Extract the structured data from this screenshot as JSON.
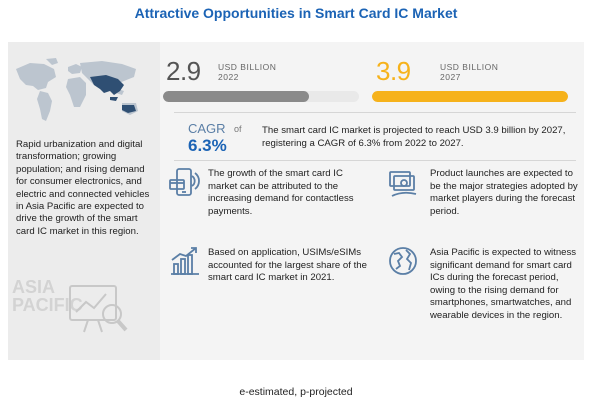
{
  "title": "Attractive Opportunities in Smart Card IC Market",
  "region": {
    "label_line1": "ASIA",
    "label_line2": "PACIFIC",
    "text": "Rapid urbanization and digital transformation; growing population; and rising demand for consumer electronics, and electric and connected vehicles in Asia Pacific are expected to drive the growth of the smart card IC market in this region."
  },
  "chart_data": {
    "type": "bar",
    "categories": [
      "2022",
      "2027"
    ],
    "values": [
      2.9,
      3.9
    ],
    "unit": "USD BILLION",
    "value_labels": [
      "2.9",
      "3.9"
    ],
    "unit_labels": [
      "USD BILLION 2022",
      "USD BILLION 2027"
    ],
    "colors": [
      "#8a8a8a",
      "#f6b21b"
    ],
    "ylim": [
      0,
      3.9
    ]
  },
  "stats": {
    "y2022": {
      "value": "2.9",
      "unit": "USD BILLION",
      "year": "2022"
    },
    "y2027": {
      "value": "3.9",
      "unit": "USD BILLION",
      "year": "2027"
    }
  },
  "cagr": {
    "label": "CAGR",
    "of": "of",
    "value": "6.3%",
    "text": "The smart card IC market is projected to reach USD 3.9 billion by 2027, registering a CAGR of 6.3% from 2022 to 2027."
  },
  "insights": [
    {
      "icon": "mobile-payment-icon",
      "text": "The growth of the smart card IC market can be attributed to the increasing demand for contactless payments."
    },
    {
      "icon": "product-launch-icon",
      "text": "Product launches are expected to be the major strategies adopted by market players during the forecast period."
    },
    {
      "icon": "growth-chart-icon",
      "text": "Based on application, USIMs/eSIMs accounted for the largest share of the smart card IC market in 2021."
    },
    {
      "icon": "globe-icon",
      "text": "Asia Pacific is expected to witness significant demand for smart card ICs during the forecast period, owing to the rising demand for smartphones, smartwatches, and wearable devices in the region."
    }
  ],
  "footer": "e-estimated, p-projected",
  "colors": {
    "title": "#1b63b5",
    "bar_2022": "#8a8a8a",
    "bar_2027": "#f6b21b",
    "cagr_value": "#1b63b5"
  }
}
